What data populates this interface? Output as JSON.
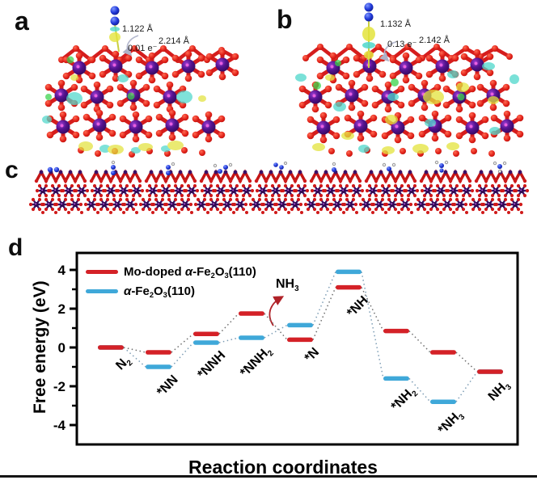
{
  "figure": {
    "panel_labels": {
      "a": "a",
      "b": "b",
      "c": "c",
      "d": "d"
    },
    "panel_a": {
      "n2_bond": "1.122 Å",
      "charge": "0.01 e⁻",
      "surface_dist": "2.214 Å"
    },
    "panel_b": {
      "n2_bond": "1.132 Å",
      "charge": "0.13 e⁻",
      "surface_dist": "2.142 Å"
    },
    "colors": {
      "fe_atom": "#53128e",
      "o_atom": "#e02018",
      "n_atom": "#2038d8",
      "isosurface_yellow": "#e3e33c",
      "isosurface_cyan": "#4ed7cb",
      "isosurface_green": "#39d44a",
      "red_series": "#d42127",
      "blue_series": "#3fa8d9"
    }
  },
  "chart_data": {
    "type": "line",
    "subtype": "free-energy-step-diagram",
    "title": "",
    "xlabel": "Reaction coordinates",
    "ylabel": "Free energy (eV)",
    "ylim": [
      -5,
      5
    ],
    "yticks": [
      4,
      2,
      0,
      -2,
      -4
    ],
    "grid": false,
    "legend_position": "top-left",
    "categories": [
      "N₂",
      "*NN",
      "*NNH",
      "*NNH₂",
      "*N",
      "*NH",
      "*NH₂",
      "*NH₃",
      "NH₃"
    ],
    "series": [
      {
        "name": "Mo-doped α-Fe₂O₃(110)",
        "color": "#d42127",
        "connector": "#6f6f6f",
        "values": [
          0,
          -0.25,
          0.7,
          1.75,
          0.4,
          3.1,
          0.85,
          -0.25,
          -1.25
        ]
      },
      {
        "name": "α-Fe₂O₃(110)",
        "color": "#3fa8d9",
        "connector": "#7d9db5",
        "values": [
          0,
          -1.0,
          0.25,
          0.5,
          1.15,
          3.9,
          -1.6,
          -2.8,
          -1.25
        ]
      }
    ],
    "annotation": {
      "label": "NH₃",
      "parts": [
        {
          "t": "NH"
        },
        {
          "t": "3",
          "s": 1
        }
      ]
    }
  },
  "panel_d": {
    "legend": [
      {
        "parts": [
          {
            "t": "Mo-doped "
          },
          {
            "t": "α",
            "i": 1
          },
          {
            "t": "-Fe"
          },
          {
            "t": "2",
            "s": 1
          },
          {
            "t": "O"
          },
          {
            "t": "3",
            "s": 1
          },
          {
            "t": "(110)"
          }
        ]
      },
      {
        "parts": [
          {
            "t": "α",
            "i": 1
          },
          {
            "t": "-Fe"
          },
          {
            "t": "2",
            "s": 1
          },
          {
            "t": "O"
          },
          {
            "t": "3",
            "s": 1
          },
          {
            "t": "(110)"
          }
        ]
      }
    ],
    "station_labels": [
      {
        "parts": [
          {
            "t": "N"
          },
          {
            "t": "2",
            "s": 1
          }
        ]
      },
      {
        "parts": [
          {
            "t": "*NN"
          }
        ]
      },
      {
        "parts": [
          {
            "t": "*NNH"
          }
        ]
      },
      {
        "parts": [
          {
            "t": "*NNH"
          },
          {
            "t": "2",
            "s": 1
          }
        ]
      },
      {
        "parts": [
          {
            "t": "*N"
          }
        ]
      },
      {
        "parts": [
          {
            "t": "*NH"
          }
        ]
      },
      {
        "parts": [
          {
            "t": "*NH"
          },
          {
            "t": "2",
            "s": 1
          }
        ]
      },
      {
        "parts": [
          {
            "t": "*NH"
          },
          {
            "t": "3",
            "s": 1
          }
        ]
      },
      {
        "parts": [
          {
            "t": "NH"
          },
          {
            "t": "3",
            "s": 1
          }
        ]
      }
    ]
  }
}
